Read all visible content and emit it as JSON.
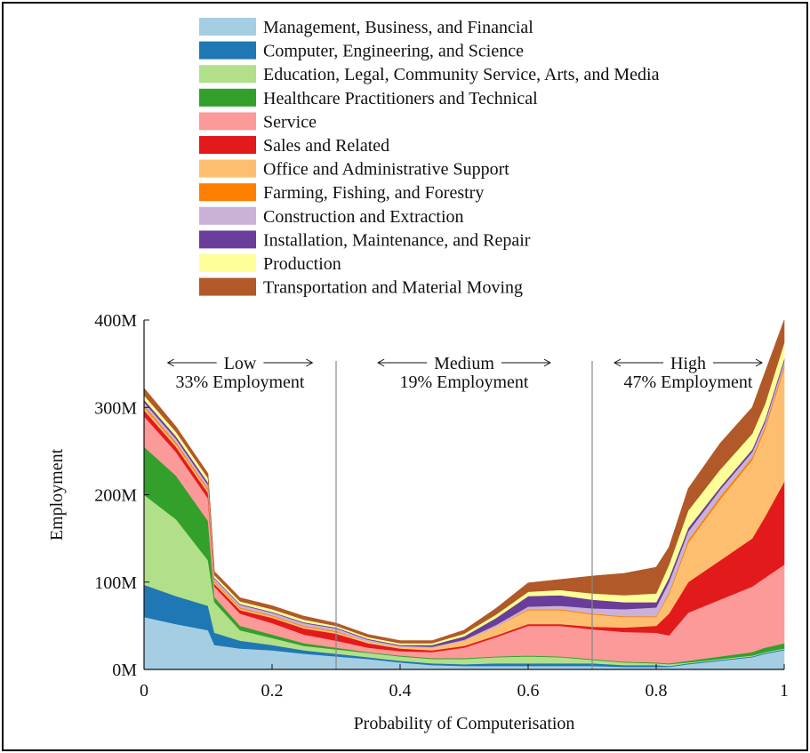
{
  "chart_data": {
    "type": "area",
    "stacked": true,
    "xlabel": "Probability of Computerisation",
    "ylabel": "Employment",
    "xlim": [
      0,
      1
    ],
    "ylim": [
      0,
      400
    ],
    "xticks": [
      "0",
      "0.2",
      "0.4",
      "0.6",
      "0.8",
      "1"
    ],
    "yticks": [
      "0M",
      "100M",
      "200M",
      "300M",
      "400M"
    ],
    "grid": false,
    "legend_position": "top",
    "regions": [
      {
        "name": "Low",
        "share": "33% Employment",
        "x_from": 0,
        "x_to": 0.3
      },
      {
        "name": "Medium",
        "share": "19% Employment",
        "x_from": 0.3,
        "x_to": 0.7
      },
      {
        "name": "High",
        "share": "47% Employment",
        "x_from": 0.7,
        "x_to": 1
      }
    ],
    "x": [
      0,
      0.05,
      0.1,
      0.11,
      0.15,
      0.2,
      0.25,
      0.3,
      0.35,
      0.4,
      0.45,
      0.5,
      0.55,
      0.6,
      0.65,
      0.7,
      0.75,
      0.8,
      0.82,
      0.85,
      0.9,
      0.95,
      0.97,
      1.0
    ],
    "series": [
      {
        "name": "Management, Business, and Financial",
        "color": "#a6cee3",
        "values": [
          60,
          52,
          45,
          28,
          24,
          22,
          18,
          15,
          12,
          8,
          5,
          4,
          4,
          4,
          4,
          4,
          3,
          3,
          3,
          6,
          10,
          14,
          18,
          22
        ]
      },
      {
        "name": "Computer, Engineering, and Science",
        "color": "#1f78b4",
        "values": [
          37,
          32,
          28,
          14,
          9,
          6,
          4,
          3,
          2,
          2,
          2,
          2,
          3,
          3,
          3,
          3,
          2,
          2,
          1,
          1,
          1,
          1,
          1,
          1
        ]
      },
      {
        "name": "Education, Legal, Community Service, Arts, and Media",
        "color": "#b2df8a",
        "values": [
          103,
          88,
          52,
          35,
          12,
          8,
          5,
          5,
          5,
          5,
          5,
          6,
          7,
          8,
          7,
          4,
          3,
          2,
          2,
          1,
          1,
          1,
          1,
          1
        ]
      },
      {
        "name": "Healthcare Practitioners and Technical",
        "color": "#33a02c",
        "values": [
          55,
          50,
          45,
          6,
          5,
          4,
          3,
          2,
          1,
          1,
          1,
          1,
          1,
          1,
          1,
          1,
          1,
          1,
          1,
          2,
          3,
          4,
          5,
          6
        ]
      },
      {
        "name": "Service",
        "color": "#fb9a99",
        "values": [
          35,
          27,
          26,
          12,
          14,
          13,
          10,
          8,
          5,
          5,
          7,
          12,
          22,
          34,
          35,
          34,
          34,
          34,
          32,
          55,
          65,
          75,
          80,
          90
        ]
      },
      {
        "name": "Sales and Related",
        "color": "#e31a1c",
        "values": [
          7,
          6,
          6,
          3,
          4,
          6,
          7,
          8,
          5,
          3,
          2,
          2,
          2,
          2,
          2,
          3,
          5,
          8,
          25,
          35,
          45,
          55,
          70,
          95
        ]
      },
      {
        "name": "Office and Administrative Support",
        "color": "#fdbf6f",
        "values": [
          3,
          3,
          3,
          2,
          2,
          2,
          2,
          2,
          2,
          2,
          3,
          6,
          10,
          16,
          16,
          14,
          12,
          10,
          22,
          45,
          70,
          90,
          100,
          130
        ]
      },
      {
        "name": "Farming, Fishing, and Forestry",
        "color": "#ff7f00",
        "values": [
          2,
          2,
          2,
          1,
          1,
          1,
          1,
          1,
          0,
          0,
          0,
          0,
          0,
          1,
          1,
          1,
          1,
          1,
          2,
          3,
          3,
          3,
          3,
          3
        ]
      },
      {
        "name": "Construction and Extraction",
        "color": "#cab2d6",
        "values": [
          4,
          4,
          4,
          3,
          3,
          3,
          3,
          3,
          2,
          1,
          1,
          1,
          2,
          3,
          4,
          6,
          8,
          10,
          12,
          10,
          8,
          6,
          5,
          5
        ]
      },
      {
        "name": "Installation, Maintenance, and Repair",
        "color": "#6a3d9a",
        "values": [
          3,
          3,
          3,
          1,
          1,
          1,
          1,
          1,
          1,
          1,
          2,
          4,
          8,
          12,
          12,
          10,
          8,
          6,
          5,
          4,
          3,
          3,
          3,
          3
        ]
      },
      {
        "name": "Production",
        "color": "#ffff99",
        "values": [
          5,
          5,
          5,
          3,
          3,
          3,
          3,
          2,
          2,
          2,
          2,
          3,
          4,
          5,
          6,
          7,
          8,
          10,
          15,
          20,
          20,
          18,
          18,
          18
        ]
      },
      {
        "name": "Transportation and Material Moving",
        "color": "#b15928",
        "values": [
          8,
          6,
          5,
          4,
          4,
          4,
          4,
          3,
          3,
          3,
          3,
          4,
          7,
          10,
          12,
          20,
          25,
          30,
          20,
          25,
          30,
          30,
          36,
          26
        ]
      }
    ]
  }
}
